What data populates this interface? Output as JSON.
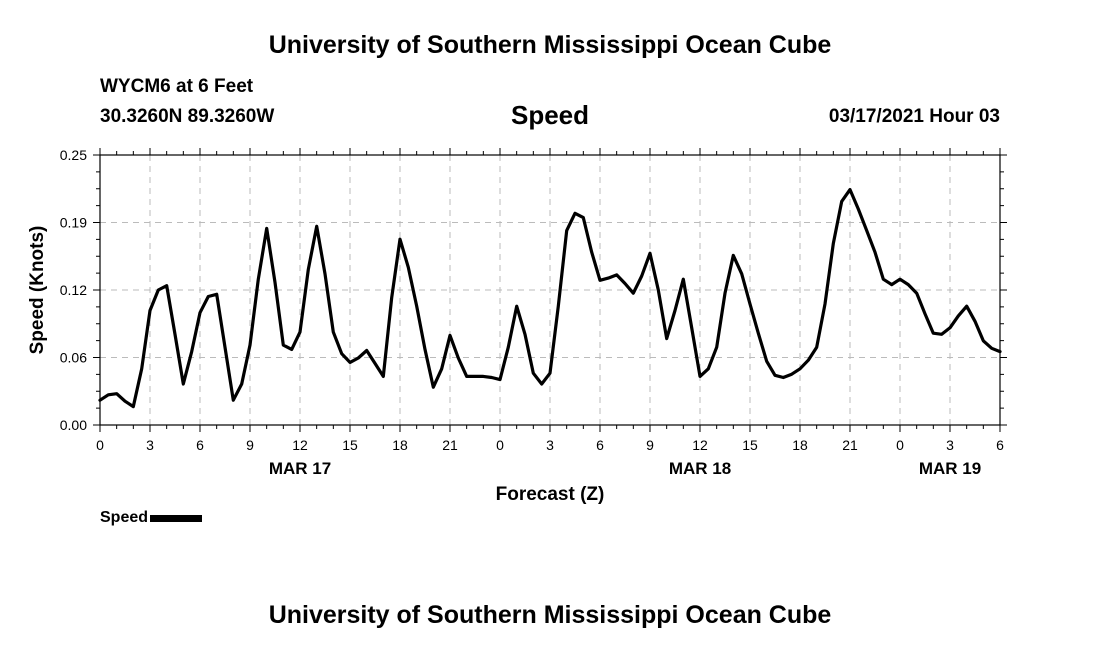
{
  "header": {
    "title": "University of Southern Mississippi Ocean Cube",
    "station": "WYCM6 at 6 Feet",
    "coordinates": "30.3260N 89.3260W",
    "variable": "Speed",
    "datetime": "03/17/2021 Hour 03"
  },
  "footer": {
    "title": "University of Southern Mississippi Ocean Cube"
  },
  "legend": {
    "label": "Speed"
  },
  "chart_data": {
    "type": "line",
    "title": "Speed",
    "xlabel": "Forecast (Z)",
    "ylabel": "Speed (Knots)",
    "ylim": [
      0,
      0.25
    ],
    "xlim": [
      0,
      54
    ],
    "y_ticks": [
      "0.00",
      "0.06",
      "0.12",
      "0.19",
      "0.25"
    ],
    "x_ticks": [
      "0",
      "3",
      "6",
      "9",
      "12",
      "15",
      "18",
      "21",
      "0",
      "3",
      "6",
      "9",
      "12",
      "15",
      "18",
      "21",
      "0",
      "3",
      "6"
    ],
    "date_labels": [
      {
        "label": "MAR 17",
        "at_hour": 12
      },
      {
        "label": "MAR 18",
        "at_hour": 36
      },
      {
        "label": "MAR 19",
        "at_hour": 51
      }
    ],
    "grid": true,
    "legend_position": "bottom-left",
    "color": "#000000",
    "series": [
      {
        "name": "Speed",
        "x": [
          0,
          0.5,
          1,
          1.5,
          2,
          2.5,
          3,
          3.5,
          4,
          4.5,
          5,
          5.5,
          6,
          6.5,
          7,
          7.5,
          8,
          8.5,
          9,
          9.5,
          10,
          10.5,
          11,
          11.5,
          12,
          12.5,
          13,
          13.5,
          14,
          14.5,
          15,
          15.5,
          16,
          16.5,
          17,
          17.5,
          18,
          18.5,
          19,
          19.5,
          20,
          20.5,
          21,
          21.5,
          22,
          22.5,
          23,
          23.5,
          24,
          24.5,
          25,
          25.5,
          26,
          26.5,
          27,
          27.5,
          28,
          28.5,
          29,
          29.5,
          30,
          30.5,
          31,
          31.5,
          32,
          32.5,
          33,
          33.5,
          34,
          34.5,
          35,
          35.5,
          36,
          36.5,
          37,
          37.5,
          38,
          38.5,
          39,
          39.5,
          40,
          40.5,
          41,
          41.5,
          42,
          42.5,
          43,
          43.5,
          44,
          44.5,
          45,
          45.5,
          46,
          46.5,
          47,
          47.5,
          48,
          48.5,
          49,
          49.5,
          50,
          50.5,
          51,
          51.5,
          52,
          52.5,
          53,
          53.5,
          54
        ],
        "values": [
          0.023,
          0.028,
          0.029,
          0.022,
          0.017,
          0.052,
          0.106,
          0.125,
          0.129,
          0.084,
          0.038,
          0.068,
          0.104,
          0.119,
          0.121,
          0.072,
          0.023,
          0.038,
          0.074,
          0.135,
          0.182,
          0.132,
          0.074,
          0.07,
          0.086,
          0.144,
          0.184,
          0.14,
          0.086,
          0.066,
          0.058,
          0.062,
          0.069,
          0.057,
          0.045,
          0.118,
          0.172,
          0.146,
          0.11,
          0.07,
          0.035,
          0.052,
          0.083,
          0.062,
          0.045,
          0.045,
          0.045,
          0.044,
          0.042,
          0.072,
          0.11,
          0.084,
          0.048,
          0.038,
          0.048,
          0.11,
          0.18,
          0.196,
          0.192,
          0.16,
          0.134,
          0.136,
          0.139,
          0.131,
          0.122,
          0.138,
          0.159,
          0.125,
          0.08,
          0.106,
          0.135,
          0.09,
          0.045,
          0.052,
          0.072,
          0.122,
          0.157,
          0.14,
          0.112,
          0.085,
          0.059,
          0.046,
          0.044,
          0.047,
          0.052,
          0.06,
          0.072,
          0.112,
          0.168,
          0.207,
          0.218,
          0.2,
          0.18,
          0.16,
          0.135,
          0.13,
          0.135,
          0.13,
          0.122,
          0.103,
          0.085,
          0.084,
          0.09,
          0.101,
          0.11,
          0.096,
          0.078,
          0.071,
          0.068
        ]
      }
    ]
  }
}
